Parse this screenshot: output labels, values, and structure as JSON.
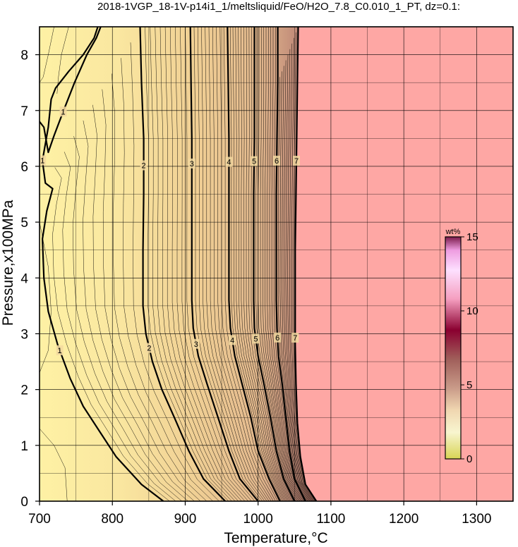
{
  "chart_data": {
    "type": "contour",
    "title": "2018-1VGP_18-1V-p14i1_1/meltsliquid/FeO/H2O_7.8_C0.010_1_PT, dz=0.1:",
    "xlabel": "Temperature,°C",
    "ylabel": "Pressure,x100MPa",
    "xlim": [
      700,
      1350
    ],
    "ylim": [
      0,
      8.5
    ],
    "xticks": [
      700,
      800,
      900,
      1000,
      1100,
      1200,
      1300
    ],
    "yticks": [
      0,
      1,
      2,
      3,
      4,
      5,
      6,
      7,
      8
    ],
    "grid": true,
    "colorbar": {
      "unit": "wt%",
      "range": [
        0,
        15
      ],
      "ticks": [
        0,
        5,
        10,
        15
      ],
      "placement": "right-inside"
    },
    "colors": {
      "low": "#fef1a4",
      "mid": "#e3b98e",
      "high": "#8c5a4f",
      "no_liquid_region": "#fea7a4",
      "cb_dark": "#8a0030",
      "cb_light": "#fde0ff"
    },
    "solidus_like_boundary_T": 1055,
    "labeled_contours": [
      {
        "value": 1,
        "label": "1",
        "points": [
          [
            870,
            0
          ],
          [
            840,
            0.3
          ],
          [
            805,
            0.8
          ],
          [
            785,
            1.2
          ],
          [
            760,
            1.7
          ],
          [
            742,
            2.2
          ],
          [
            725,
            2.8
          ],
          [
            712,
            3.4
          ],
          [
            706,
            4.0
          ],
          [
            704,
            4.7
          ],
          [
            710,
            5.2
          ],
          [
            718,
            5.6
          ],
          [
            708,
            5.7
          ],
          [
            704,
            6.1
          ],
          [
            712,
            6.7
          ],
          [
            716,
            7.2
          ],
          [
            722,
            7.4
          ],
          [
            740,
            7.7
          ],
          [
            760,
            8.0
          ],
          [
            775,
            8.3
          ],
          [
            780,
            8.5
          ]
        ]
      },
      {
        "value": 1,
        "label": "1",
        "points": [
          [
            700,
            6.8
          ],
          [
            706,
            6.7
          ],
          [
            712,
            6.25
          ],
          [
            720,
            6.55
          ],
          [
            733,
            7.0
          ],
          [
            748,
            7.5
          ],
          [
            765,
            8.0
          ],
          [
            778,
            8.3
          ],
          [
            784,
            8.5
          ]
        ]
      },
      {
        "value": 2,
        "label": "2",
        "points": [
          [
            955,
            0
          ],
          [
            925,
            0.4
          ],
          [
            905,
            0.9
          ],
          [
            885,
            1.5
          ],
          [
            868,
            2.0
          ],
          [
            855,
            2.5
          ],
          [
            846,
            3.0
          ],
          [
            842,
            3.5
          ],
          [
            842,
            4.5
          ],
          [
            843,
            5.5
          ],
          [
            843,
            6.5
          ],
          [
            840,
            7.5
          ],
          [
            838,
            8.5
          ]
        ]
      },
      {
        "value": 3,
        "label": "3",
        "points": [
          [
            1000,
            0
          ],
          [
            975,
            0.4
          ],
          [
            960,
            0.9
          ],
          [
            945,
            1.5
          ],
          [
            930,
            2.1
          ],
          [
            918,
            2.6
          ],
          [
            911,
            3.1
          ],
          [
            909,
            3.6
          ],
          [
            909,
            4.5
          ],
          [
            909,
            5.5
          ],
          [
            909,
            6.5
          ],
          [
            908,
            7.5
          ],
          [
            907,
            8.5
          ]
        ]
      },
      {
        "value": 4,
        "label": "4",
        "points": [
          [
            1030,
            0
          ],
          [
            1015,
            0.4
          ],
          [
            1000,
            0.9
          ],
          [
            990,
            1.5
          ],
          [
            978,
            2.1
          ],
          [
            968,
            2.6
          ],
          [
            962,
            3.1
          ],
          [
            960,
            3.6
          ],
          [
            960,
            4.5
          ],
          [
            960,
            5.5
          ],
          [
            960,
            6.5
          ],
          [
            959,
            7.5
          ],
          [
            958,
            8.5
          ]
        ]
      },
      {
        "value": 5,
        "label": "5",
        "points": [
          [
            1050,
            0
          ],
          [
            1035,
            0.4
          ],
          [
            1025,
            0.9
          ],
          [
            1017,
            1.5
          ],
          [
            1008,
            2.1
          ],
          [
            1000,
            2.6
          ],
          [
            995,
            3.1
          ],
          [
            994,
            3.6
          ],
          [
            994,
            4.5
          ],
          [
            994,
            5.5
          ],
          [
            995,
            6.5
          ],
          [
            995,
            7.5
          ],
          [
            995,
            8.5
          ]
        ]
      },
      {
        "value": 6,
        "label": "6",
        "points": [
          [
            1065,
            0
          ],
          [
            1050,
            0.4
          ],
          [
            1043,
            0.9
          ],
          [
            1038,
            1.5
          ],
          [
            1033,
            2.1
          ],
          [
            1028,
            2.6
          ],
          [
            1026,
            3.1
          ],
          [
            1025,
            3.6
          ],
          [
            1025,
            4.5
          ],
          [
            1025,
            5.5
          ],
          [
            1026,
            6.5
          ],
          [
            1027,
            7.5
          ],
          [
            1027,
            8.5
          ]
        ]
      },
      {
        "value": 7,
        "label": "7",
        "points": [
          [
            1080,
            0
          ],
          [
            1065,
            0.3
          ],
          [
            1058,
            0.8
          ],
          [
            1054,
            1.4
          ],
          [
            1052,
            2.1
          ],
          [
            1051,
            2.8
          ],
          [
            1051,
            3.5
          ],
          [
            1051,
            4.5
          ],
          [
            1052,
            5.5
          ],
          [
            1053,
            6.5
          ],
          [
            1054,
            7.5
          ],
          [
            1055,
            8.5
          ]
        ]
      }
    ],
    "minor_contour_step": 0.1
  }
}
